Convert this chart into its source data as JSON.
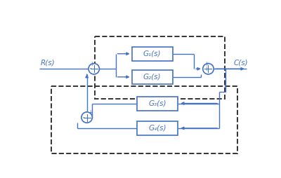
{
  "bg_color": "#ffffff",
  "line_color": "#4472c4",
  "dashed_color": "#333333",
  "text_color": "#4472c4",
  "labels": {
    "R": "R(s)",
    "C": "C(s)",
    "G1": "G₁(s)",
    "G2": "G₂(s)",
    "G3": "G₃(s)",
    "G4": "G₄(s)"
  },
  "fig_width": 4.0,
  "fig_height": 2.54,
  "dpi": 100
}
